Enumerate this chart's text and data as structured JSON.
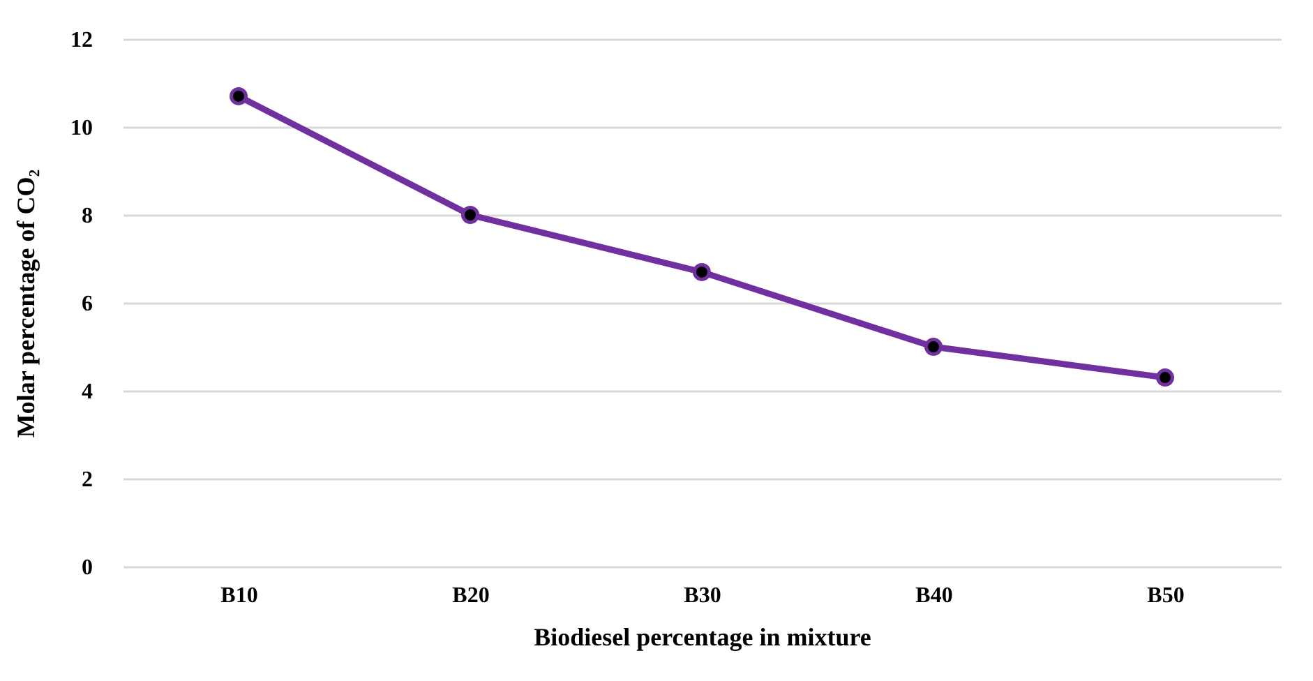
{
  "chart_data": {
    "type": "line",
    "xlabel": "Biodiesel percentage in  mixture",
    "ylabel": "Molar percentage of CO₂",
    "categories": [
      "B10",
      "B20",
      "B30",
      "B40",
      "B50"
    ],
    "series": [
      {
        "color": "#7030a0",
        "values": [
          10.7,
          8.0,
          6.7,
          5.0,
          4.3
        ]
      }
    ],
    "ylim": [
      0,
      12
    ],
    "yticks": [
      0,
      2,
      4,
      6,
      8,
      10,
      12
    ],
    "grid": "y",
    "marker": "circle",
    "line_style": "solid"
  }
}
